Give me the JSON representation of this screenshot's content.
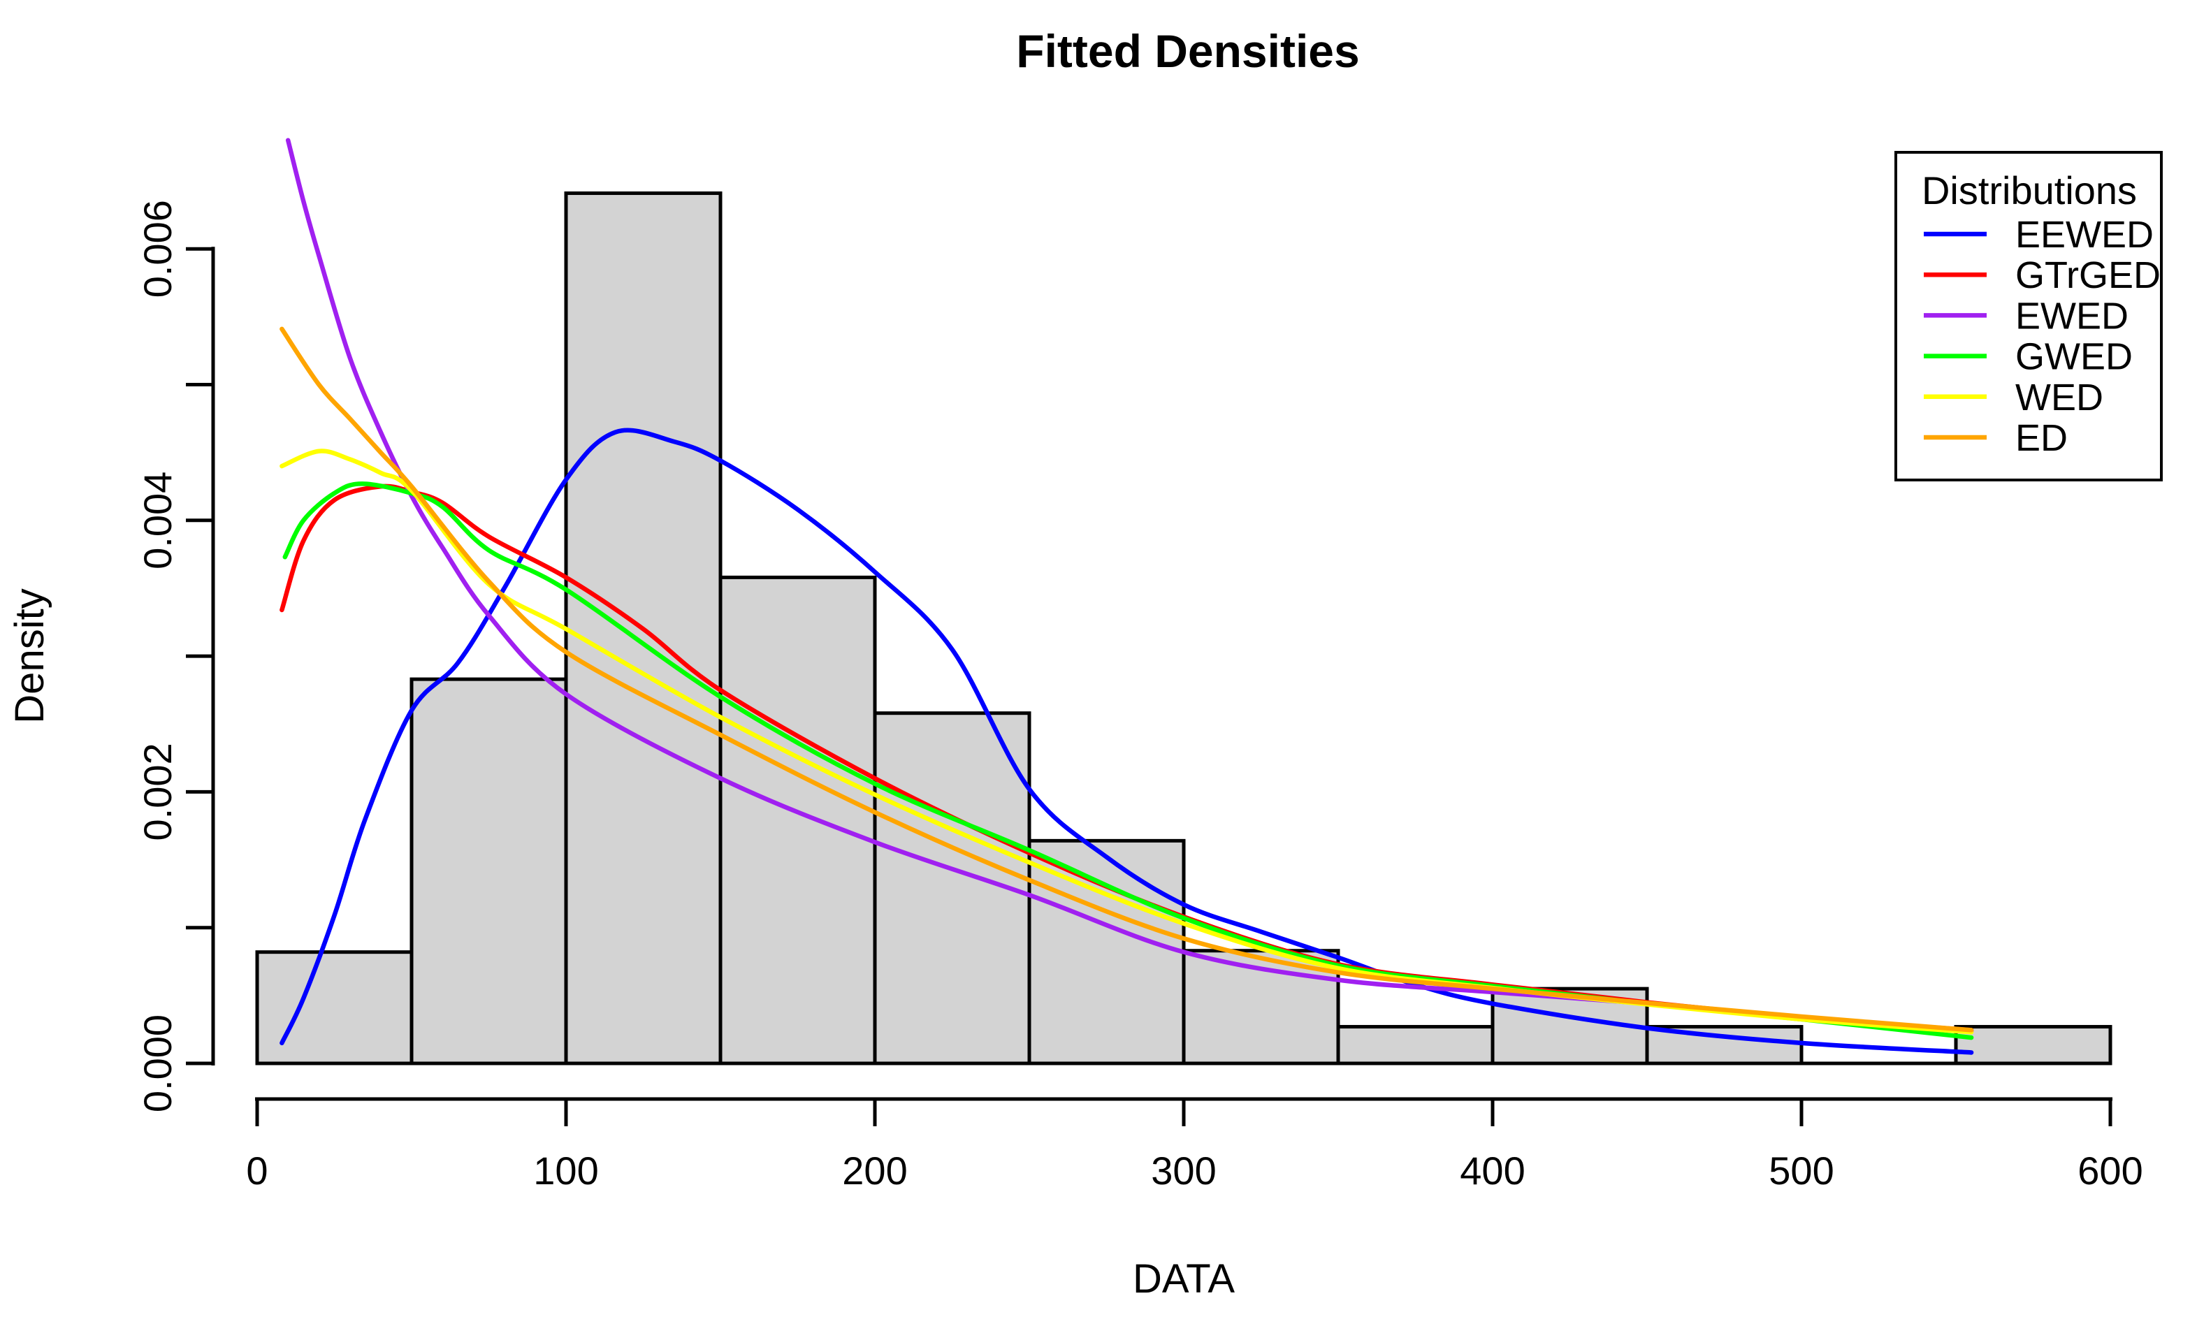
{
  "figure": {
    "title": "Fitted Densities"
  },
  "chart_data": {
    "type": "histogram+lines",
    "title": "Fitted Densities",
    "xlabel": "DATA",
    "ylabel": "Density",
    "xlim": [
      0,
      600
    ],
    "ylim": [
      0,
      0.006
    ],
    "grid": "off",
    "legend_position": "top-right",
    "background": "#ffffff",
    "x_ticks": [
      {
        "value": 0,
        "label": "0"
      },
      {
        "value": 100,
        "label": "100"
      },
      {
        "value": 200,
        "label": "200"
      },
      {
        "value": 300,
        "label": "300"
      },
      {
        "value": 400,
        "label": "400"
      },
      {
        "value": 500,
        "label": "500"
      },
      {
        "value": 600,
        "label": "600"
      }
    ],
    "y_ticks": [
      {
        "value": 0.0,
        "label": "0.000"
      },
      {
        "value": 0.001,
        "label": ""
      },
      {
        "value": 0.002,
        "label": "0.002"
      },
      {
        "value": 0.003,
        "label": ""
      },
      {
        "value": 0.004,
        "label": "0.004"
      },
      {
        "value": 0.005,
        "label": ""
      },
      {
        "value": 0.006,
        "label": "0.006"
      }
    ],
    "histogram": {
      "name": "DATA histogram",
      "bin_start": 0,
      "bin_width": 50,
      "fill": "#D3D3D3",
      "stroke": "#000000",
      "densities": [
        0.00082,
        0.00283,
        0.00641,
        0.00358,
        0.00258,
        0.00164,
        0.00083,
        0.00027,
        0.00055,
        0.00027,
        0.0,
        0.00027
      ]
    },
    "series": [
      {
        "name": "EEWED",
        "color": "#0000FF",
        "points": [
          [
            8,
            0.00015
          ],
          [
            15,
            0.00048
          ],
          [
            25,
            0.00109
          ],
          [
            35,
            0.0018
          ],
          [
            50,
            0.0026
          ],
          [
            65,
            0.00295
          ],
          [
            80,
            0.0035
          ],
          [
            100,
            0.0043
          ],
          [
            116,
            0.00465
          ],
          [
            135,
            0.00458
          ],
          [
            150,
            0.00444
          ],
          [
            175,
            0.00408
          ],
          [
            200,
            0.00362
          ],
          [
            225,
            0.00305
          ],
          [
            250,
            0.00202
          ],
          [
            275,
            0.00152
          ],
          [
            300,
            0.00117
          ],
          [
            325,
            0.00097
          ],
          [
            350,
            0.00078
          ],
          [
            375,
            0.00058
          ],
          [
            400,
            0.00044
          ],
          [
            450,
            0.00026
          ],
          [
            500,
            0.00015
          ],
          [
            555,
            8e-05
          ]
        ]
      },
      {
        "name": "GTrGED",
        "color": "#FF0000",
        "points": [
          [
            8,
            0.00334
          ],
          [
            15,
            0.00385
          ],
          [
            25,
            0.00415
          ],
          [
            40,
            0.00425
          ],
          [
            50,
            0.00421
          ],
          [
            60,
            0.00413
          ],
          [
            75,
            0.00388
          ],
          [
            100,
            0.00358
          ],
          [
            125,
            0.0032
          ],
          [
            150,
            0.00275
          ],
          [
            200,
            0.0021
          ],
          [
            250,
            0.00155
          ],
          [
            300,
            0.00108
          ],
          [
            350,
            0.00073
          ],
          [
            400,
            0.00058
          ],
          [
            450,
            0.00045
          ],
          [
            500,
            0.00034
          ],
          [
            555,
            0.000245
          ]
        ]
      },
      {
        "name": "EWED",
        "color": "#A020F0",
        "points": [
          [
            10,
            0.0068
          ],
          [
            15,
            0.00635
          ],
          [
            20,
            0.00595
          ],
          [
            30,
            0.0052
          ],
          [
            40,
            0.00465
          ],
          [
            50,
            0.00418
          ],
          [
            60,
            0.0038
          ],
          [
            75,
            0.0033
          ],
          [
            100,
            0.00272
          ],
          [
            150,
            0.0021
          ],
          [
            200,
            0.00163
          ],
          [
            250,
            0.00124
          ],
          [
            300,
            0.00082
          ],
          [
            350,
            0.000615
          ],
          [
            400,
            0.000525
          ],
          [
            450,
            0.00044
          ],
          [
            500,
            0.00034
          ],
          [
            555,
            0.000235
          ]
        ]
      },
      {
        "name": "GWED",
        "color": "#00FF00",
        "points": [
          [
            9,
            0.00373
          ],
          [
            15,
            0.004
          ],
          [
            25,
            0.0042
          ],
          [
            34,
            0.00427
          ],
          [
            50,
            0.0042
          ],
          [
            60,
            0.0041
          ],
          [
            75,
            0.00378
          ],
          [
            100,
            0.00349
          ],
          [
            150,
            0.0027
          ],
          [
            200,
            0.00206
          ],
          [
            250,
            0.00157
          ],
          [
            300,
            0.00107
          ],
          [
            350,
            0.00072
          ],
          [
            400,
            0.00057
          ],
          [
            450,
            0.00044
          ],
          [
            500,
            0.000325
          ],
          [
            555,
            0.00019
          ]
        ]
      },
      {
        "name": "WED",
        "color": "#FFFF00",
        "points": [
          [
            8,
            0.0044
          ],
          [
            20,
            0.00451
          ],
          [
            30,
            0.00445
          ],
          [
            40,
            0.00435
          ],
          [
            50,
            0.00422
          ],
          [
            75,
            0.00353
          ],
          [
            100,
            0.0032
          ],
          [
            150,
            0.00255
          ],
          [
            200,
            0.00198
          ],
          [
            250,
            0.00148
          ],
          [
            300,
            0.00103
          ],
          [
            350,
            0.0007
          ],
          [
            400,
            0.000555
          ],
          [
            450,
            0.000435
          ],
          [
            500,
            0.000325
          ],
          [
            555,
            0.00023
          ]
        ]
      },
      {
        "name": "ED",
        "color": "#FFA500",
        "points": [
          [
            8,
            0.00541
          ],
          [
            20,
            0.005
          ],
          [
            30,
            0.00475
          ],
          [
            40,
            0.0045
          ],
          [
            50,
            0.00425
          ],
          [
            75,
            0.00355
          ],
          [
            100,
            0.00303
          ],
          [
            150,
            0.00242
          ],
          [
            200,
            0.00185
          ],
          [
            250,
            0.00135
          ],
          [
            300,
            0.00092
          ],
          [
            350,
            0.00067
          ],
          [
            400,
            0.00055
          ],
          [
            450,
            0.000445
          ],
          [
            500,
            0.000345
          ],
          [
            555,
            0.000245
          ]
        ]
      }
    ],
    "legend": {
      "title": "Distributions",
      "entries": [
        {
          "label": "EEWED",
          "color": "#0000FF"
        },
        {
          "label": "GTrGED",
          "color": "#FF0000"
        },
        {
          "label": "EWED",
          "color": "#A020F0"
        },
        {
          "label": "GWED",
          "color": "#00FF00"
        },
        {
          "label": "WED",
          "color": "#FFFF00"
        },
        {
          "label": "ED",
          "color": "#FFA500"
        }
      ]
    }
  }
}
